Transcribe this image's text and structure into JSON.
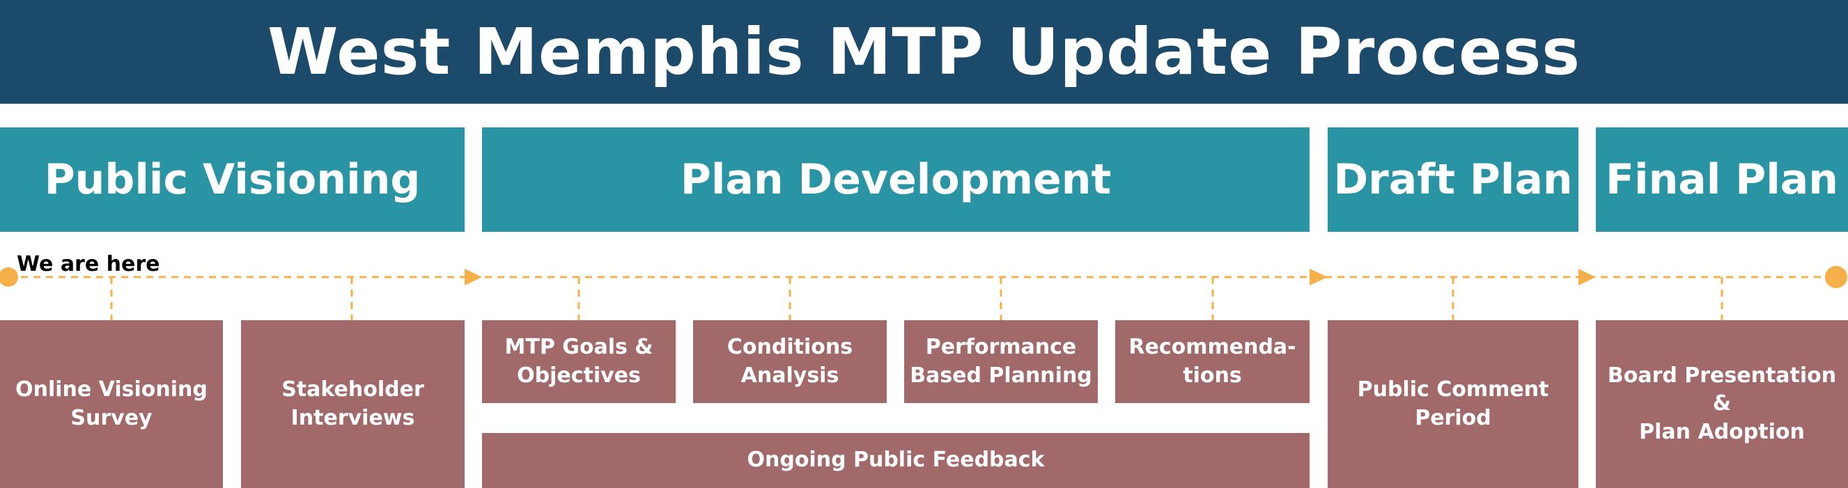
{
  "title": "West Memphis MTP Update Process",
  "phases": [
    {
      "label": "Public Visioning"
    },
    {
      "label": "Plan Development"
    },
    {
      "label": "Draft Plan"
    },
    {
      "label": "Final Plan"
    }
  ],
  "marker": {
    "label": "We are here"
  },
  "tasks": {
    "online_visioning_survey": [
      "Online Visioning",
      "Survey"
    ],
    "stakeholder_interviews": [
      "Stakeholder",
      "Interviews"
    ],
    "mtp_goals": [
      "MTP Goals &",
      "Objectives"
    ],
    "conditions_analysis": [
      "Conditions",
      "Analysis"
    ],
    "performance_planning": [
      "Performance",
      "Based Planning"
    ],
    "recommendations": [
      "Recommenda-",
      "tions"
    ],
    "ongoing_feedback": "Ongoing Public Feedback",
    "public_comment": [
      "Public Comment",
      "Period"
    ],
    "board_presentation": [
      "Board Presentation &",
      "Plan Adoption"
    ]
  },
  "colors": {
    "title_bg": "#1b4a6b",
    "phase_bg": "#2994a4",
    "task_bg": "#a1696a",
    "timeline": "#f5b04a"
  }
}
